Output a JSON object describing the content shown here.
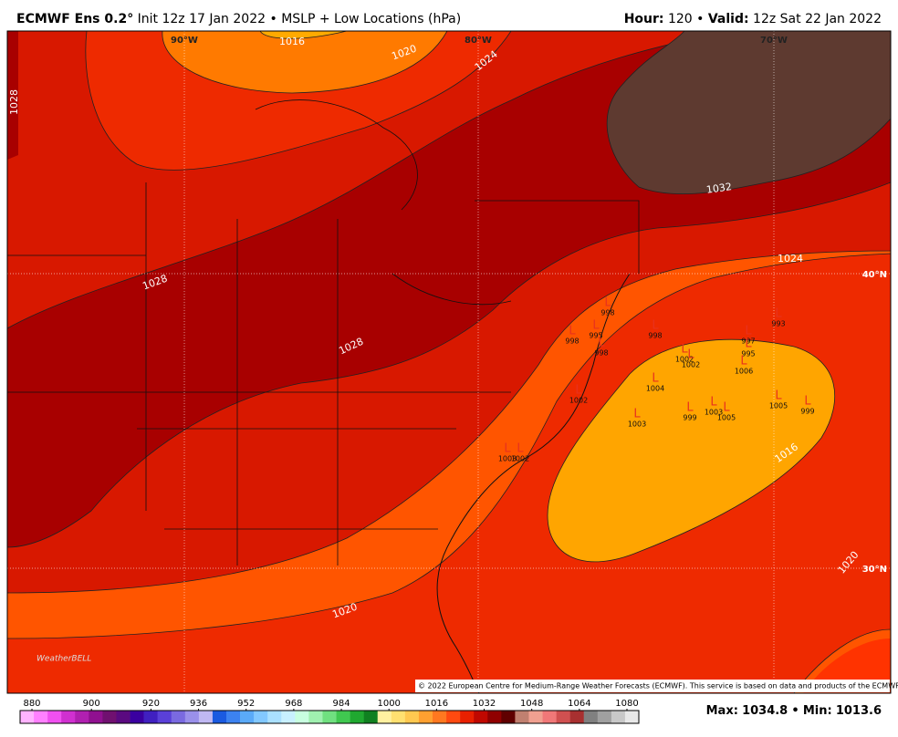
{
  "header": {
    "model": "ECMWF Ens 0.2°",
    "subtitle": "Init 12z 17 Jan 2022",
    "separator": "•",
    "product": "MSLP + Low Locations (hPa)",
    "hour_label": "Hour:",
    "hour": "120",
    "valid_label": "Valid:",
    "valid": "12z Sat 22 Jan 2022"
  },
  "map": {
    "lon_labels": [
      "90°W",
      "80°W",
      "70°W"
    ],
    "lat_labels": [
      "40°N",
      "30°N"
    ],
    "contour_labels": [
      "1016",
      "1020",
      "1024",
      "1028",
      "1028",
      "1028",
      "1032",
      "1024",
      "1016",
      "1020",
      "1020"
    ],
    "low_symbol": "L",
    "lows": [
      998,
      998,
      993,
      997,
      995,
      1002,
      1002,
      1006,
      1004,
      995,
      998,
      998,
      1002,
      1003,
      999,
      1003,
      1005,
      1005,
      999,
      1003,
      1002
    ],
    "copyright": "© 2022 European Centre for Medium-Range Weather Forecasts (ECMWF). This service is based on data and products of the ECMWF.",
    "logo": "WeatherBELL"
  },
  "colorbar": {
    "ticks": [
      880,
      900,
      920,
      936,
      952,
      968,
      984,
      1000,
      1016,
      1032,
      1048,
      1064,
      1080
    ]
  },
  "footer": {
    "max_label": "Max:",
    "max": "1034.8",
    "min_label": "Min:",
    "min": "1013.6"
  }
}
